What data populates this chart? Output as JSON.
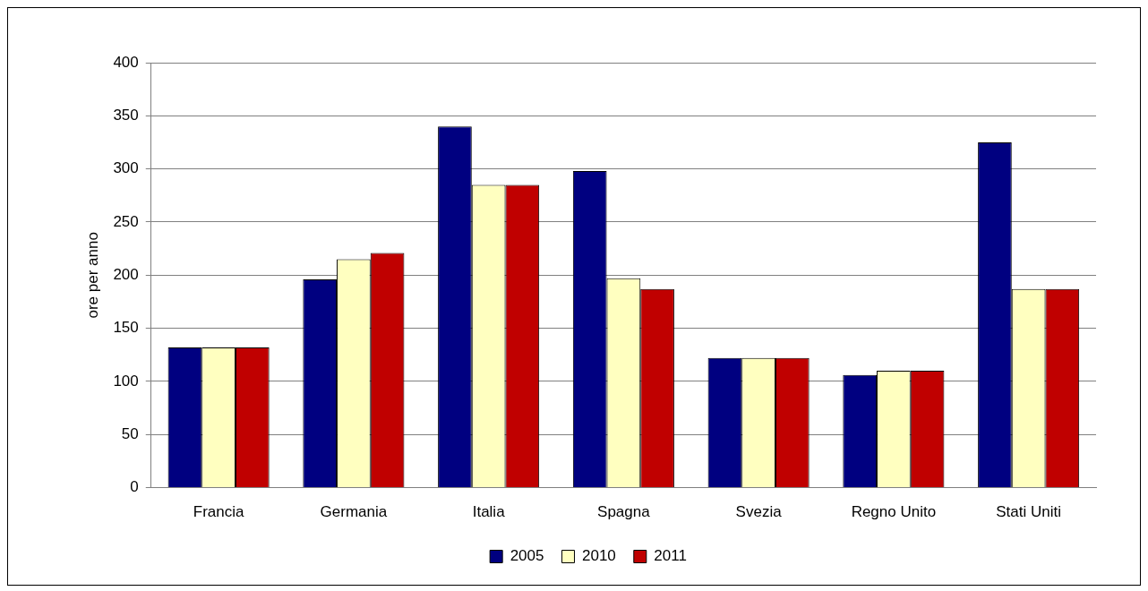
{
  "chart_data": {
    "type": "bar",
    "ylabel": "ore per anno",
    "categories": [
      "Francia",
      "Germania",
      "Italia",
      "Spagna",
      "Svezia",
      "Regno Unito",
      "Stati Uniti"
    ],
    "series": [
      {
        "name": "2005",
        "color": "#000080",
        "values": [
          132,
          196,
          340,
          298,
          122,
          106,
          325
        ]
      },
      {
        "name": "2010",
        "color": "#ffffc0",
        "values": [
          132,
          215,
          285,
          197,
          122,
          110,
          187
        ]
      },
      {
        "name": "2011",
        "color": "#c00000",
        "values": [
          132,
          221,
          285,
          187,
          122,
          110,
          187
        ]
      }
    ],
    "ylim": [
      0,
      400
    ],
    "yticks": [
      0,
      50,
      100,
      150,
      200,
      250,
      300,
      350,
      400
    ],
    "grid": "y",
    "legend": "bottom"
  }
}
